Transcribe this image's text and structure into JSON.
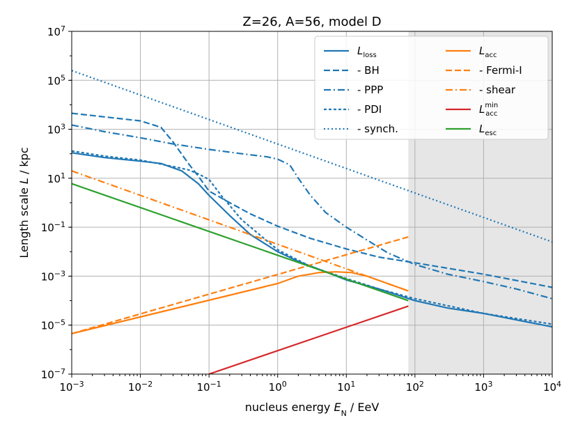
{
  "chart_data": {
    "type": "line",
    "title": "Z=26, A=56, model D",
    "xlabel": "nucleus energy E_N / EeV",
    "xlabel_parts": {
      "pre": "nucleus energy ",
      "sym": "E",
      "sub": "N",
      "post": " / EeV"
    },
    "ylabel": "Length scale L / kpc",
    "ylabel_parts": {
      "pre": "Length scale ",
      "sym": "L",
      "post": " / kpc"
    },
    "x_scale": "log",
    "y_scale": "log",
    "xlim": [
      0.001,
      10000
    ],
    "ylim": [
      1e-07,
      10000000.0
    ],
    "grid": true,
    "x_ticks": [
      {
        "value": 0.001,
        "base": "10",
        "exp": "−3"
      },
      {
        "value": 0.01,
        "base": "10",
        "exp": "−2"
      },
      {
        "value": 0.1,
        "base": "10",
        "exp": "−1"
      },
      {
        "value": 1,
        "base": "10",
        "exp": "0"
      },
      {
        "value": 10,
        "base": "10",
        "exp": "1"
      },
      {
        "value": 100,
        "base": "10",
        "exp": "2"
      },
      {
        "value": 1000,
        "base": "10",
        "exp": "3"
      },
      {
        "value": 10000,
        "base": "10",
        "exp": "4"
      }
    ],
    "y_ticks": [
      {
        "value": 1e-07,
        "base": "10",
        "exp": "−7"
      },
      {
        "value": 1e-05,
        "base": "10",
        "exp": "−5"
      },
      {
        "value": 0.001,
        "base": "10",
        "exp": "−3"
      },
      {
        "value": 0.1,
        "base": "10",
        "exp": "−1"
      },
      {
        "value": 10,
        "base": "10",
        "exp": "1"
      },
      {
        "value": 1000,
        "base": "10",
        "exp": "3"
      },
      {
        "value": 100000,
        "base": "10",
        "exp": "5"
      },
      {
        "value": 10000000,
        "base": "10",
        "exp": "7"
      }
    ],
    "shaded_region": {
      "x_from": 80,
      "x_to": 10000,
      "color": "#e6e6e6"
    },
    "colors": {
      "blue": "#1f77b4",
      "orange": "#ff7f0e",
      "red": "#d62728",
      "green": "#2ca02c"
    },
    "series": [
      {
        "id": "loss",
        "name": "L_loss",
        "color": "#1f77b4",
        "dash": "solid",
        "points": [
          [
            0.001,
            110
          ],
          [
            0.003,
            70
          ],
          [
            0.01,
            50
          ],
          [
            0.02,
            40
          ],
          [
            0.04,
            20
          ],
          [
            0.07,
            6
          ],
          [
            0.1,
            2
          ],
          [
            0.2,
            0.3
          ],
          [
            0.4,
            0.05
          ],
          [
            1,
            0.01
          ],
          [
            2,
            0.004
          ],
          [
            5,
            0.0015
          ],
          [
            10,
            0.0007
          ],
          [
            30,
            0.0003
          ],
          [
            100,
            0.0001
          ],
          [
            300,
            5e-05
          ],
          [
            1000,
            3e-05
          ],
          [
            10000,
            8.5e-06
          ]
        ]
      },
      {
        "id": "bh",
        "name": "- BH",
        "color": "#1f77b4",
        "dash": "dashed",
        "points": [
          [
            0.001,
            4500
          ],
          [
            0.003,
            3200
          ],
          [
            0.01,
            2200
          ],
          [
            0.02,
            1200
          ],
          [
            0.03,
            300
          ],
          [
            0.05,
            40
          ],
          [
            0.07,
            12
          ],
          [
            0.1,
            3
          ],
          [
            0.2,
            1
          ],
          [
            0.4,
            0.35
          ],
          [
            1,
            0.11
          ],
          [
            3,
            0.035
          ],
          [
            10,
            0.013
          ],
          [
            30,
            0.006
          ],
          [
            100,
            0.0035
          ],
          [
            1000,
            0.0012
          ],
          [
            10000,
            0.00035
          ]
        ]
      },
      {
        "id": "ppp",
        "name": "- PPP",
        "color": "#1f77b4",
        "dash": "dashdot",
        "points": [
          [
            0.001,
            1500
          ],
          [
            0.003,
            800
          ],
          [
            0.01,
            450
          ],
          [
            0.03,
            250
          ],
          [
            0.1,
            150
          ],
          [
            0.3,
            100
          ],
          [
            0.7,
            75
          ],
          [
            1,
            60
          ],
          [
            1.5,
            35
          ],
          [
            2,
            10
          ],
          [
            3,
            2
          ],
          [
            5,
            0.4
          ],
          [
            10,
            0.1
          ],
          [
            20,
            0.03
          ],
          [
            40,
            0.009
          ],
          [
            100,
            0.003
          ],
          [
            300,
            0.0012
          ],
          [
            1000,
            0.0006
          ],
          [
            3000,
            0.0003
          ],
          [
            10000,
            0.00012
          ]
        ]
      },
      {
        "id": "pdi",
        "name": "- PDI",
        "color": "#1f77b4",
        "dash": "densedash",
        "points": [
          [
            0.001,
            130
          ],
          [
            0.003,
            80
          ],
          [
            0.01,
            55
          ],
          [
            0.03,
            30
          ],
          [
            0.05,
            22
          ],
          [
            0.07,
            15
          ],
          [
            0.1,
            9
          ],
          [
            0.15,
            2
          ],
          [
            0.3,
            0.2
          ],
          [
            1,
            0.012
          ],
          [
            3,
            0.0025
          ],
          [
            10,
            0.0008
          ],
          [
            30,
            0.0003
          ],
          [
            100,
            0.00012
          ],
          [
            1000,
            3e-05
          ],
          [
            10000,
            1.1e-05
          ]
        ]
      },
      {
        "id": "synch",
        "name": "- synch.",
        "color": "#1f77b4",
        "dash": "dotted",
        "points": [
          [
            0.001,
            250000
          ],
          [
            10000,
            0.025
          ]
        ]
      },
      {
        "id": "acc",
        "name": "L_acc",
        "color": "#ff7f0e",
        "dash": "solid",
        "points": [
          [
            0.001,
            4.5e-06
          ],
          [
            1,
            0.0005
          ],
          [
            2,
            0.001
          ],
          [
            4,
            0.0014
          ],
          [
            7,
            0.0015
          ],
          [
            12,
            0.0014
          ],
          [
            20,
            0.001
          ],
          [
            40,
            0.0005
          ],
          [
            80,
            0.00025
          ]
        ]
      },
      {
        "id": "fermi",
        "name": "- Fermi-I",
        "color": "#ff7f0e",
        "dash": "dashed",
        "points": [
          [
            0.001,
            4.5e-06
          ],
          [
            80,
            0.04
          ]
        ]
      },
      {
        "id": "shear",
        "name": "- shear",
        "color": "#ff7f0e",
        "dash": "dashdot",
        "points": [
          [
            0.001,
            20
          ],
          [
            80,
            0.00025
          ]
        ]
      },
      {
        "id": "accmin",
        "name": "L_acc^min",
        "color": "#d62728",
        "dash": "solid",
        "points": [
          [
            0.1,
            1e-07
          ],
          [
            80,
            6e-05
          ]
        ]
      },
      {
        "id": "esc",
        "name": "L_esc",
        "color": "#2ca02c",
        "dash": "solid",
        "points": [
          [
            0.001,
            6
          ],
          [
            80,
            0.0001
          ]
        ]
      }
    ],
    "legend": {
      "placement": "top-right",
      "columns": [
        [
          {
            "series": "loss",
            "sym": "L",
            "sub": "loss",
            "sup": "",
            "text": ""
          },
          {
            "series": "bh",
            "sym": "",
            "sub": "",
            "sup": "",
            "text": "- BH"
          },
          {
            "series": "ppp",
            "sym": "",
            "sub": "",
            "sup": "",
            "text": "- PPP"
          },
          {
            "series": "pdi",
            "sym": "",
            "sub": "",
            "sup": "",
            "text": "- PDI"
          },
          {
            "series": "synch",
            "sym": "",
            "sub": "",
            "sup": "",
            "text": "- synch."
          }
        ],
        [
          {
            "series": "acc",
            "sym": "L",
            "sub": "acc",
            "sup": "",
            "text": ""
          },
          {
            "series": "fermi",
            "sym": "",
            "sub": "",
            "sup": "",
            "text": "- Fermi-I"
          },
          {
            "series": "shear",
            "sym": "",
            "sub": "",
            "sup": "",
            "text": "- shear"
          },
          {
            "series": "accmin",
            "sym": "L",
            "sub": "acc",
            "sup": "min",
            "text": ""
          },
          {
            "series": "esc",
            "sym": "L",
            "sub": "esc",
            "sup": "",
            "text": ""
          }
        ]
      ]
    }
  }
}
